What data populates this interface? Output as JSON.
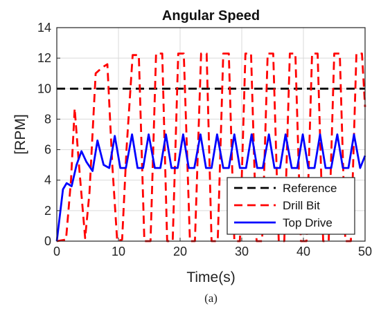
{
  "chart_data": {
    "type": "line",
    "title": "Angular Speed",
    "xlabel": "Time(s)",
    "ylabel": "[RPM]",
    "xlim": [
      0,
      50
    ],
    "ylim": [
      0,
      14
    ],
    "xticks": [
      0,
      10,
      20,
      30,
      40,
      50
    ],
    "yticks": [
      0,
      2,
      4,
      6,
      8,
      10,
      12,
      14
    ],
    "grid": true,
    "legend_position": "bottom-right",
    "series": [
      {
        "name": "Reference",
        "color": "#000000",
        "style": "dashed",
        "x": [
          0,
          50
        ],
        "y": [
          10,
          10
        ]
      },
      {
        "name": "Drill Bit",
        "color": "#ff0000",
        "style": "dashed",
        "x": [
          0,
          1.5,
          2.3,
          2.9,
          3.6,
          4.6,
          5.3,
          6.3,
          7.4,
          8.2,
          9.0,
          9.8,
          10.6,
          11.3,
          12.3,
          13.3,
          14.2,
          15.2,
          16.1,
          17.1,
          17.9,
          18.8,
          19.7,
          20.6,
          21.6,
          22.4,
          23.4,
          24.3,
          25.1,
          26.1,
          27.0,
          27.9,
          28.8,
          29.7,
          30.6,
          31.5,
          32.4,
          33.3,
          34.2,
          35.1,
          36.0,
          36.9,
          37.8,
          38.7,
          39.6,
          40.5,
          41.4,
          42.3,
          43.2,
          44.1,
          45.0,
          45.9,
          46.8,
          47.7,
          48.6,
          49.5,
          50
        ],
        "y": [
          0,
          0.1,
          4.0,
          8.7,
          5.0,
          0.2,
          3.2,
          11.0,
          11.4,
          11.6,
          5.0,
          0,
          0.1,
          6.0,
          12.2,
          12.2,
          0,
          0,
          12.3,
          12.3,
          0,
          0,
          12.3,
          12.3,
          0,
          0,
          12.3,
          12.3,
          0,
          0,
          12.3,
          12.3,
          0,
          0,
          12.3,
          12.3,
          0,
          0,
          12.3,
          12.3,
          0,
          0,
          12.3,
          12.3,
          0,
          0,
          12.3,
          12.3,
          0,
          0,
          12.3,
          12.3,
          0,
          0,
          12.3,
          12.3,
          8.8
        ]
      },
      {
        "name": "Top Drive",
        "color": "#0000ff",
        "style": "solid",
        "x": [
          0,
          1.0,
          1.6,
          2.4,
          3.2,
          4.0,
          4.8,
          5.8,
          6.6,
          7.6,
          8.5,
          9.4,
          10.3,
          11.2,
          12.2,
          13.1,
          14.0,
          14.9,
          15.9,
          16.8,
          17.7,
          18.6,
          19.6,
          20.5,
          21.4,
          22.3,
          23.3,
          24.2,
          25.1,
          26.0,
          27.0,
          27.9,
          28.8,
          29.7,
          30.7,
          31.6,
          32.5,
          33.4,
          34.4,
          35.3,
          36.2,
          37.1,
          38.1,
          39.0,
          39.9,
          40.8,
          41.8,
          42.7,
          43.6,
          44.5,
          45.5,
          46.4,
          47.3,
          48.2,
          49.2,
          50
        ],
        "y": [
          0,
          3.4,
          3.8,
          3.6,
          5.0,
          5.9,
          5.2,
          4.6,
          6.6,
          5.0,
          4.8,
          6.9,
          4.8,
          4.8,
          7.0,
          4.8,
          4.8,
          7.0,
          4.8,
          4.8,
          7.0,
          4.8,
          4.8,
          7.0,
          4.8,
          4.8,
          7.0,
          4.8,
          4.8,
          7.0,
          4.8,
          4.8,
          7.0,
          4.8,
          4.8,
          7.0,
          4.8,
          4.8,
          7.0,
          4.8,
          4.8,
          7.0,
          4.8,
          4.8,
          7.0,
          4.8,
          4.8,
          7.0,
          4.8,
          4.8,
          7.0,
          4.8,
          4.8,
          7.0,
          4.8,
          5.6
        ]
      }
    ],
    "caption": "(a)"
  }
}
